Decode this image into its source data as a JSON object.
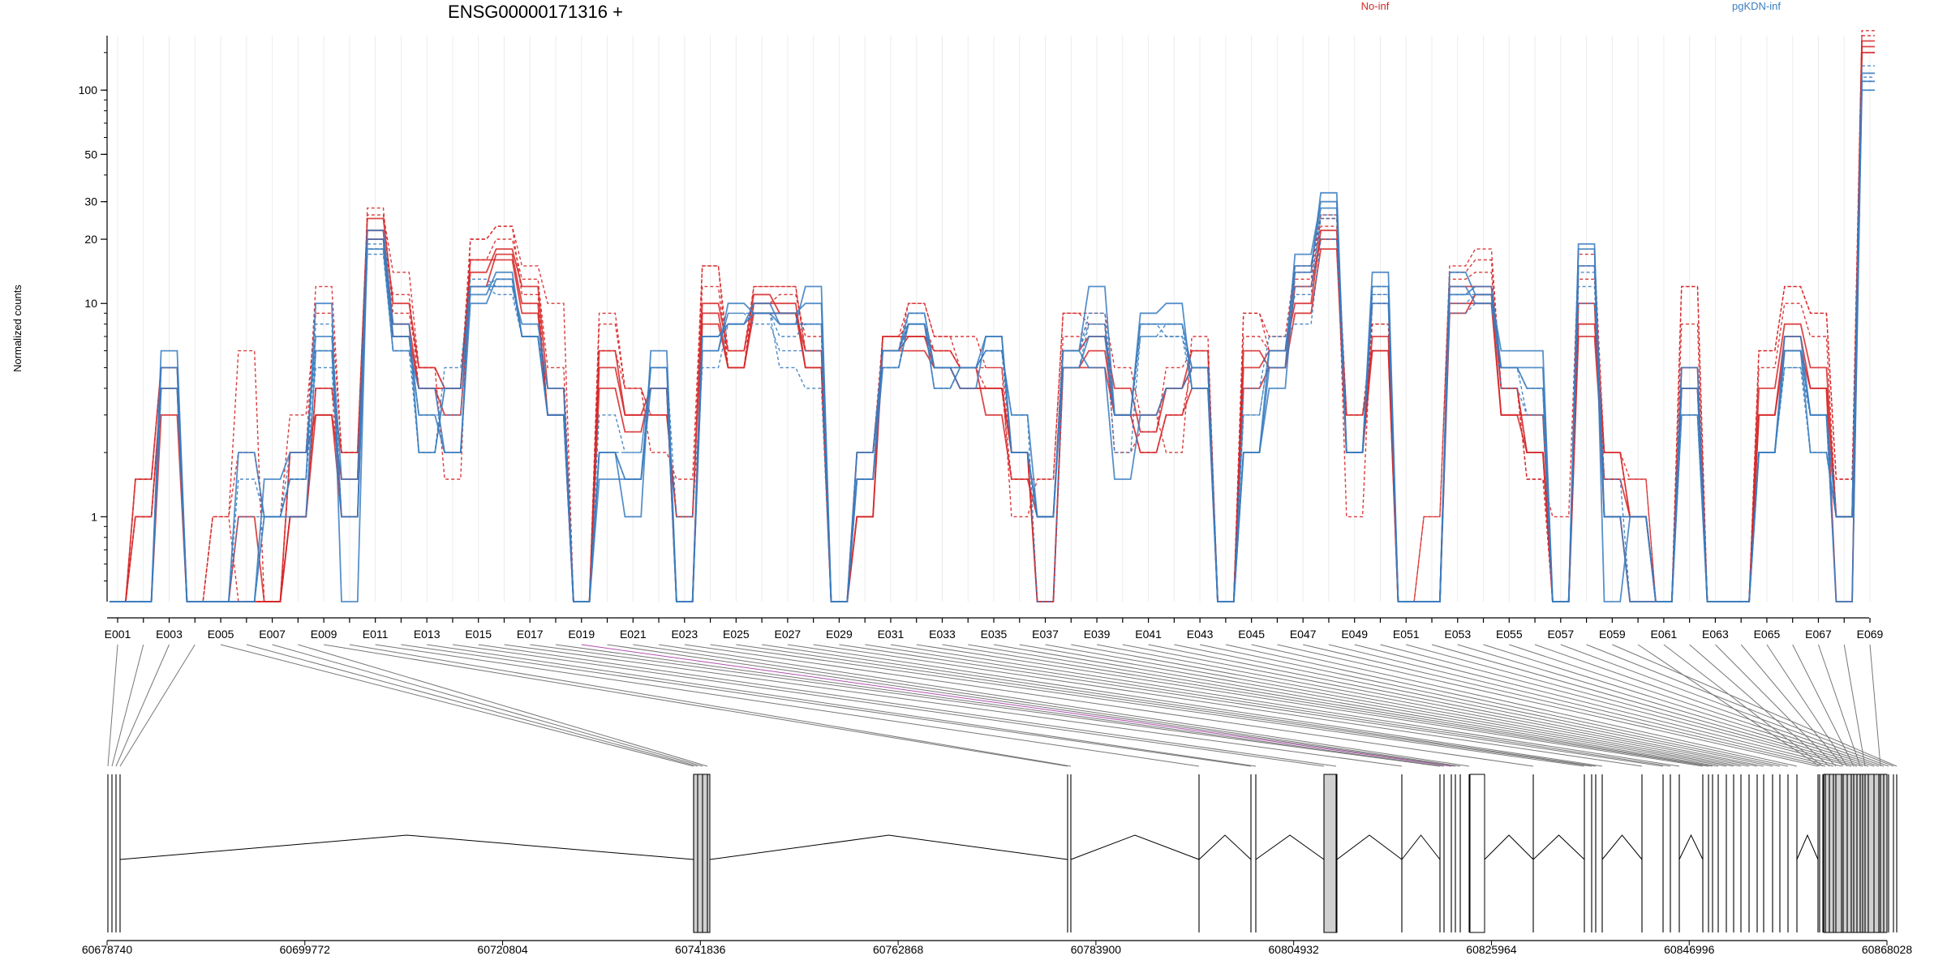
{
  "chart_data": {
    "type": "line",
    "title": "ENSG00000171316 +",
    "ylabel": "Normalized counts",
    "yscale": "log",
    "ylim": [
      0.4,
      180
    ],
    "yticks": [
      1,
      10,
      20,
      30,
      50,
      100
    ],
    "categories": [
      "E001",
      "E002",
      "E003",
      "E004",
      "E005",
      "E006",
      "E007",
      "E008",
      "E009",
      "E010",
      "E011",
      "E012",
      "E013",
      "E014",
      "E015",
      "E016",
      "E017",
      "E018",
      "E019",
      "E020",
      "E021",
      "E022",
      "E023",
      "E024",
      "E025",
      "E026",
      "E027",
      "E028",
      "E029",
      "E030",
      "E031",
      "E032",
      "E033",
      "E034",
      "E035",
      "E036",
      "E037",
      "E038",
      "E039",
      "E040",
      "E041",
      "E042",
      "E043",
      "E044",
      "E045",
      "E046",
      "E047",
      "E048",
      "E049",
      "E050",
      "E051",
      "E052",
      "E053",
      "E054",
      "E055",
      "E056",
      "E057",
      "E058",
      "E059",
      "E060",
      "E061",
      "E062",
      "E063",
      "E064",
      "E065",
      "E066",
      "E067",
      "E068",
      "E069"
    ],
    "legend": [
      {
        "label": "No-inf",
        "color": "#d62728"
      },
      {
        "label": "pgKDN-inf",
        "color": "#3a7dbf"
      }
    ],
    "groups": [
      {
        "name": "No-inf",
        "color": "#d62728",
        "replicates": [
          [
            0.4,
            1,
            4,
            0.4,
            0.4,
            0.4,
            0.4,
            2,
            3,
            1,
            20,
            8,
            4,
            3,
            12,
            17,
            10,
            3,
            0.4,
            5,
            3,
            4,
            0.4,
            9,
            5,
            10,
            10,
            5,
            0.4,
            1,
            7,
            7,
            5,
            4,
            4,
            2,
            0.4,
            5,
            6,
            3,
            2,
            3,
            4,
            0.4,
            6,
            5,
            12,
            20,
            3,
            6,
            0.4,
            0.4,
            10,
            10,
            3,
            3,
            0.4,
            8,
            2,
            1,
            0.4,
            4,
            0.4,
            0.4,
            3,
            6,
            4,
            1,
            160
          ],
          [
            0.4,
            1.5,
            5,
            0.4,
            0.4,
            1,
            0.4,
            1,
            4,
            2,
            25,
            10,
            5,
            4,
            14,
            18,
            12,
            4,
            0.4,
            6,
            3,
            3,
            1,
            10,
            6,
            11,
            9,
            6,
            0.4,
            2,
            6,
            7,
            6,
            5,
            3,
            1.5,
            1,
            6,
            7,
            4,
            2.5,
            4,
            6,
            0.4,
            5,
            6,
            10,
            22,
            2,
            7,
            0.4,
            0.4,
            12,
            12,
            4,
            2,
            0.4,
            10,
            1,
            0.4,
            0.4,
            5,
            0.4,
            0.4,
            4,
            8,
            5,
            1,
            170
          ],
          [
            0.4,
            0.4,
            3,
            0.4,
            0.4,
            0.4,
            0.4,
            1,
            3,
            1.5,
            22,
            7,
            4,
            4,
            16,
            16,
            9,
            3,
            0.4,
            4,
            2.5,
            4,
            0.4,
            8,
            5,
            9,
            9,
            5,
            0.4,
            1,
            6,
            6,
            5,
            4,
            4,
            2,
            0.4,
            5,
            5,
            3,
            3,
            4,
            5,
            0.4,
            4,
            5,
            9,
            18,
            2,
            6,
            0.4,
            0.4,
            9,
            11,
            3,
            2,
            0.4,
            7,
            1.5,
            1,
            0.4,
            4,
            0.4,
            0.4,
            3,
            7,
            4,
            0.4,
            150
          ],
          [
            0.4,
            1,
            4,
            0.4,
            1,
            0.4,
            0.4,
            1,
            4,
            1,
            28,
            9,
            5,
            1.5,
            20,
            23,
            11,
            3,
            0.4,
            6,
            4,
            3,
            1,
            15,
            5,
            12,
            12,
            6,
            0.4,
            1.5,
            7,
            10,
            7,
            5,
            4,
            1.5,
            1.5,
            9,
            8,
            2,
            2.5,
            5,
            6,
            0.4,
            9,
            6,
            14,
            25,
            3,
            8,
            0.4,
            1,
            14,
            16,
            4,
            1.5,
            0.4,
            15,
            1.5,
            1.5,
            0.4,
            12,
            0.4,
            0.4,
            6,
            12,
            9,
            1.5,
            190
          ],
          [
            0.4,
            1.5,
            5,
            0.4,
            1,
            6,
            0.4,
            2,
            12,
            2,
            26,
            14,
            5,
            4,
            20,
            23,
            15,
            10,
            0.4,
            9,
            4,
            2,
            1.5,
            15,
            6,
            12,
            12,
            6,
            0.4,
            2,
            6,
            10,
            7,
            7,
            5,
            1,
            1.5,
            9,
            9,
            5,
            3,
            2,
            7,
            0.4,
            9,
            7,
            15,
            26,
            1,
            10,
            0.4,
            1,
            15,
            18,
            4,
            1.5,
            1,
            17,
            2,
            1,
            0.4,
            12,
            0.4,
            0.4,
            6,
            12,
            9,
            1.5,
            150
          ],
          [
            0.4,
            1,
            4,
            0.4,
            1,
            2,
            1,
            3,
            9,
            2,
            20,
            11,
            4,
            4,
            16,
            20,
            13,
            5,
            0.4,
            8,
            4,
            3,
            1,
            12,
            5,
            10,
            11,
            7,
            0.4,
            2,
            7,
            8,
            6,
            5,
            5,
            2,
            1,
            7,
            8,
            3,
            2,
            3,
            5,
            0.4,
            7,
            6,
            13,
            23,
            2,
            8,
            0.4,
            0.4,
            13,
            14,
            4,
            2,
            0.4,
            13,
            2,
            1.5,
            0.4,
            8,
            0.4,
            0.4,
            5,
            10,
            7,
            1,
            180
          ]
        ]
      },
      {
        "name": "pgKDN-inf",
        "color": "#3a7dbf",
        "replicates": [
          [
            0.4,
            0.4,
            6,
            0.4,
            0.4,
            0.4,
            1,
            1,
            6,
            1,
            18,
            6,
            4,
            2,
            10,
            13,
            7,
            3,
            0.4,
            2,
            1,
            6,
            0.4,
            7,
            8,
            9,
            8,
            12,
            0.4,
            1.5,
            5,
            8,
            5,
            5,
            7,
            2,
            1,
            6,
            5,
            1.5,
            3,
            4,
            5,
            0.4,
            2,
            4,
            14,
            33,
            2,
            14,
            0.4,
            0.4,
            12,
            10,
            5,
            5,
            0.4,
            18,
            1,
            1,
            0.4,
            3,
            0.4,
            0.4,
            2,
            6,
            2,
            1,
            100
          ],
          [
            0.4,
            0.4,
            4,
            0.4,
            0.4,
            2,
            1,
            1.5,
            10,
            0.4,
            20,
            7,
            3,
            2,
            12,
            12,
            8,
            4,
            0.4,
            2,
            1.5,
            4,
            0.4,
            6,
            10,
            9,
            9,
            10,
            0.4,
            1.5,
            6,
            9,
            5,
            4,
            7,
            2,
            1,
            6,
            12,
            3,
            9,
            10,
            4,
            0.4,
            2,
            5,
            17,
            30,
            2,
            12,
            0.4,
            0.4,
            14,
            11,
            6,
            6,
            0.4,
            19,
            0.4,
            1,
            0.4,
            5,
            0.4,
            0.4,
            2,
            7,
            3,
            0.4,
            110
          ],
          [
            0.4,
            0.4,
            5,
            0.4,
            0.4,
            0.4,
            1.5,
            2,
            7,
            1.5,
            22,
            8,
            2,
            4,
            11,
            14,
            7,
            3,
            0.4,
            1.5,
            1.5,
            5,
            0.4,
            7,
            8,
            10,
            8,
            8,
            0.4,
            2,
            6,
            8,
            4,
            5,
            6,
            3,
            1,
            5,
            7,
            3,
            8,
            8,
            5,
            0.4,
            2,
            6,
            15,
            28,
            2,
            10,
            0.4,
            0.4,
            11,
            12,
            5,
            4,
            0.4,
            15,
            1,
            0.4,
            0.4,
            4,
            0.4,
            0.4,
            2,
            6,
            3,
            1,
            120
          ],
          [
            0.4,
            0.4,
            4,
            0.4,
            0.4,
            0.4,
            1,
            1.5,
            5,
            1,
            17,
            6,
            2,
            4,
            12,
            11,
            7,
            4,
            0.4,
            3,
            2,
            5,
            1,
            5,
            8,
            9,
            5,
            4,
            0.4,
            2,
            5,
            9,
            5,
            5,
            6,
            3,
            0.4,
            5,
            8,
            3,
            8,
            7,
            4,
            0.4,
            4,
            7,
            8,
            20,
            2,
            11,
            0.4,
            0.4,
            9,
            10,
            5,
            3,
            0.4,
            10,
            1.5,
            0.4,
            0.4,
            3,
            0.4,
            0.4,
            2,
            5,
            3,
            0.4,
            110
          ],
          [
            0.4,
            0.4,
            4,
            0.4,
            0.4,
            1,
            1,
            2,
            6,
            1,
            18,
            7,
            2,
            5,
            13,
            12,
            7,
            3,
            0.4,
            2,
            2,
            5,
            0.4,
            6,
            9,
            8,
            6,
            6,
            0.4,
            2,
            5,
            8,
            4,
            5,
            6,
            2,
            1,
            6,
            9,
            3,
            7,
            7,
            5,
            0.4,
            3,
            6,
            11,
            25,
            2,
            11,
            0.4,
            0.4,
            10,
            11,
            4,
            3,
            0.4,
            12,
            1,
            1,
            0.4,
            4,
            0.4,
            0.4,
            2,
            5,
            2,
            1,
            130
          ],
          [
            0.4,
            0.4,
            5,
            0.4,
            0.4,
            1.5,
            1,
            1.5,
            8,
            1,
            19,
            7,
            3,
            3,
            12,
            13,
            7,
            3,
            0.4,
            2,
            1.5,
            5,
            0.4,
            6,
            9,
            9,
            7,
            8,
            0.4,
            2,
            6,
            8,
            5,
            5,
            6,
            2,
            1,
            6,
            8,
            2,
            7,
            8,
            4,
            0.4,
            3,
            6,
            12,
            26,
            2,
            12,
            0.4,
            0.4,
            11,
            11,
            5,
            4,
            0.4,
            14,
            1,
            1,
            0.4,
            4,
            0.4,
            0.4,
            2,
            6,
            3,
            1,
            115
          ]
        ]
      }
    ],
    "coordinate_axis": {
      "ticks": [
        60678740,
        60699772,
        60720804,
        60741836,
        60762868,
        60783900,
        60804932,
        60825964,
        60846996,
        60868028
      ],
      "range": [
        60678740,
        60868028
      ]
    }
  }
}
